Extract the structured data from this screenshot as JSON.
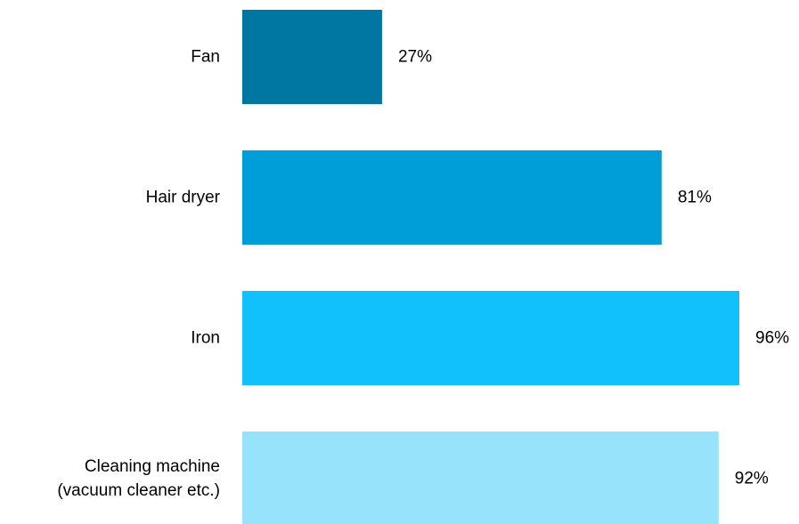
{
  "chart_data": {
    "type": "bar",
    "orientation": "horizontal",
    "categories": [
      [
        "Fan"
      ],
      [
        "Hair dryer"
      ],
      [
        "Iron"
      ],
      [
        "Cleaning machine",
        "(vacuum cleaner etc.)"
      ]
    ],
    "values": [
      27,
      81,
      96,
      92
    ],
    "value_labels": [
      "27%",
      "81%",
      "96%",
      "92%"
    ],
    "colors": [
      "#0077A3",
      "#009ED8",
      "#10C1FB",
      "#97E3FC"
    ],
    "xlim": [
      0,
      100
    ],
    "title": "",
    "xlabel": "",
    "ylabel": "",
    "grid": false,
    "legend": "none"
  }
}
